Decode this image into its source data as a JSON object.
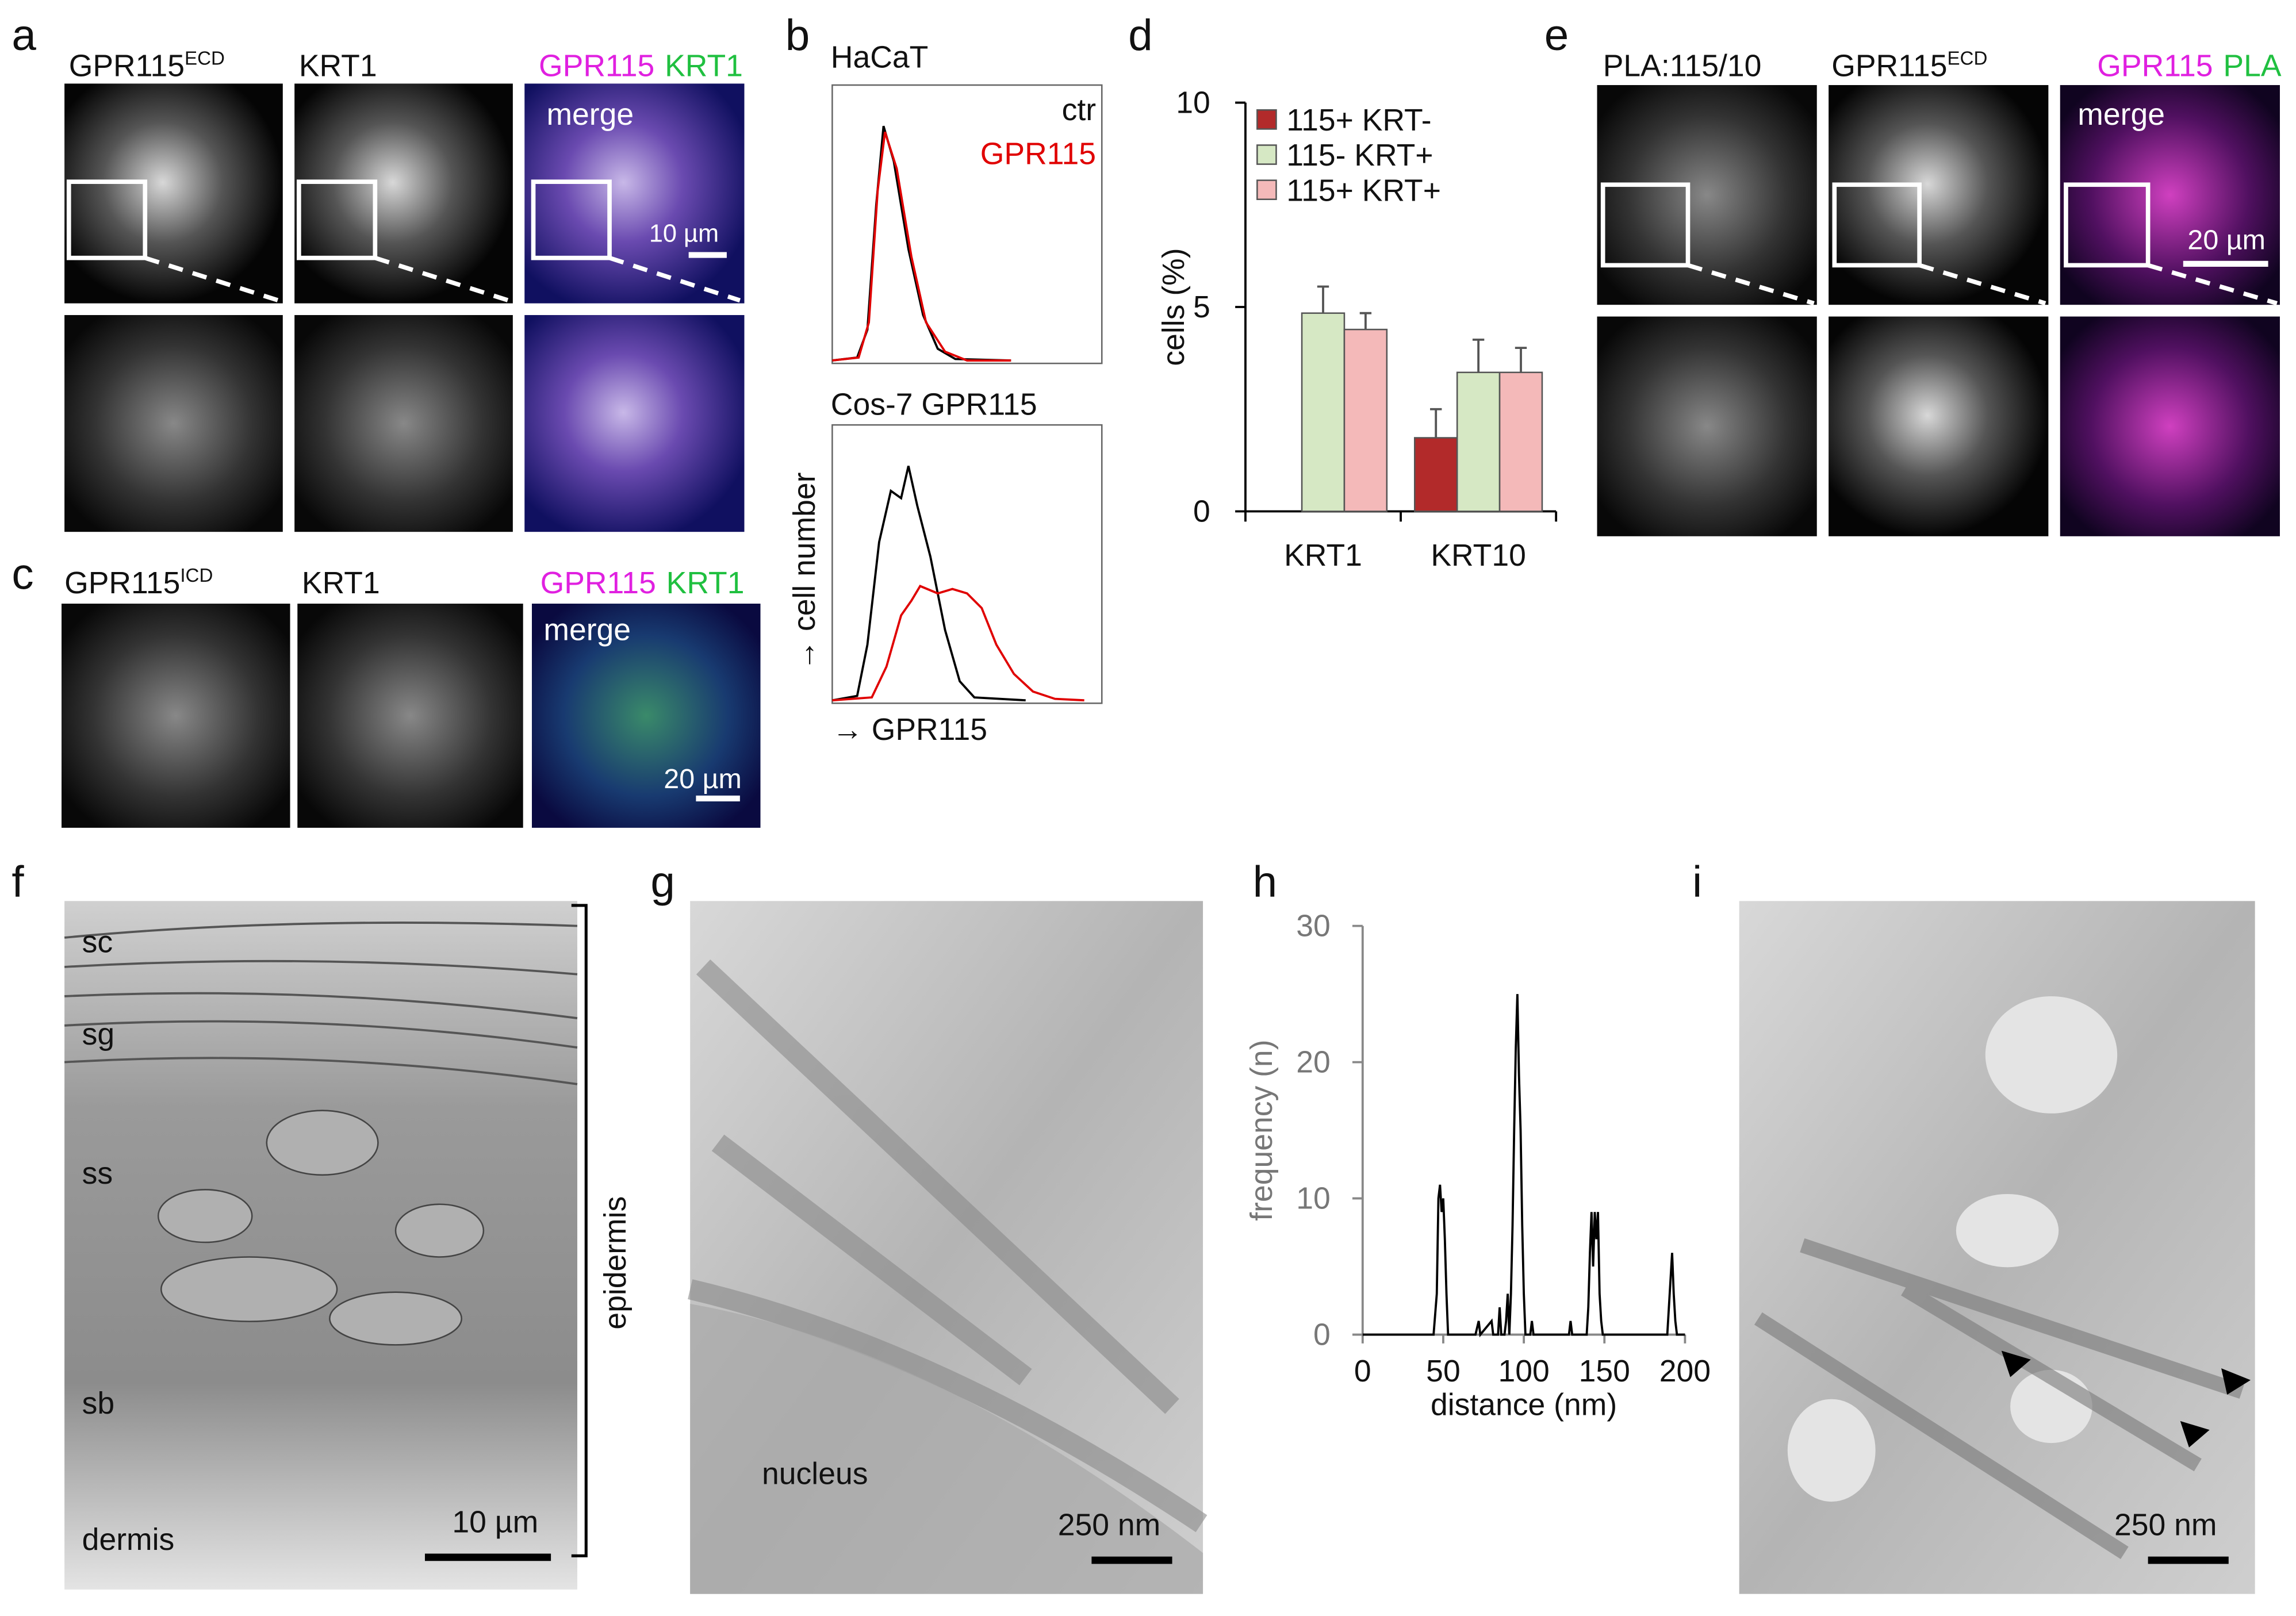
{
  "panels": {
    "a": {
      "letter": "a",
      "label1": "GPR115",
      "label1_sup": "ECD",
      "label2": "KRT1",
      "merge_a": "GPR115",
      "merge_b": "KRT1",
      "merge": "merge",
      "scale": "10 µm"
    },
    "b": {
      "letter": "b",
      "top_title": "HaCaT",
      "legend_ctr": "ctr",
      "legend_gpr": "GPR115",
      "bottom_title": "Cos-7 GPR115",
      "ylabel": "→ cell number",
      "xlabel": "→ GPR115"
    },
    "c": {
      "letter": "c",
      "label1": "GPR115",
      "label1_sup": "ICD",
      "label2": "KRT1",
      "merge_a": "GPR115",
      "merge_b": "KRT1",
      "merge": "merge",
      "scale": "20 µm"
    },
    "d": {
      "letter": "d"
    },
    "e": {
      "letter": "e",
      "label1": "PLA:115/10",
      "label2": "GPR115",
      "label2_sup": "ECD",
      "merge_a": "GPR115",
      "merge_b": "PLA",
      "merge": "merge",
      "scale": "20 µm"
    },
    "f": {
      "letter": "f",
      "layers": [
        "sc",
        "sg",
        "ss",
        "sb",
        "dermis"
      ],
      "scale": "10 µm",
      "bracket": "epidermis"
    },
    "g": {
      "letter": "g",
      "nucleus": "nucleus",
      "scale": "250 nm"
    },
    "h": {
      "letter": "h"
    },
    "i": {
      "letter": "i",
      "scale": "250 nm"
    }
  },
  "chart_data": [
    {
      "type": "bar",
      "ylabel": "cells (%)",
      "categories": [
        "KRT1",
        "KRT10"
      ],
      "series": [
        {
          "name": "115+ KRT-",
          "color": "#b22a2a",
          "values": [
            null,
            1.8
          ],
          "errors": [
            null,
            0.7
          ]
        },
        {
          "name": "115- KRT+",
          "color": "#d6e8c4",
          "values": [
            4.85,
            3.4
          ],
          "errors": [
            0.65,
            0.8
          ]
        },
        {
          "name": "115+ KRT+",
          "color": "#f4b9b9",
          "values": [
            4.45,
            3.4
          ],
          "errors": [
            0.4,
            0.6
          ]
        }
      ],
      "ylim": [
        0,
        10
      ],
      "yticks": [
        0,
        5,
        10
      ],
      "legend": "top-left"
    },
    {
      "type": "line",
      "xlabel": "distance (nm)",
      "ylabel": "frequency (n)",
      "color": "#000000",
      "x": [
        0,
        44,
        46,
        47,
        48,
        49,
        50,
        51,
        52,
        53,
        70,
        72,
        73,
        80,
        81,
        84,
        85,
        86,
        88,
        89,
        90,
        91,
        92,
        93,
        94,
        95,
        96,
        97,
        98,
        99,
        100,
        101,
        104,
        105,
        106,
        128,
        129,
        130,
        139,
        140,
        141,
        142,
        143,
        144,
        145,
        146,
        147,
        148,
        149,
        189,
        190,
        191,
        192,
        193,
        194,
        195,
        200
      ],
      "values": [
        0,
        0,
        3,
        10,
        11,
        9,
        10,
        7,
        3,
        0,
        0,
        1,
        0,
        1,
        0,
        0,
        2,
        0,
        0,
        1,
        3,
        0,
        3,
        8,
        15,
        21,
        25,
        19,
        15,
        8,
        3,
        0,
        0,
        1,
        0,
        0,
        1,
        0,
        0,
        2,
        6,
        9,
        5,
        9,
        7,
        9,
        3,
        1,
        0,
        0,
        2,
        4,
        6,
        3,
        1,
        0,
        0
      ],
      "xlim": [
        0,
        200
      ],
      "xticks": [
        0,
        50,
        100,
        150,
        200
      ],
      "ylim": [
        0,
        30
      ],
      "yticks": [
        0,
        10,
        20,
        30
      ]
    }
  ]
}
